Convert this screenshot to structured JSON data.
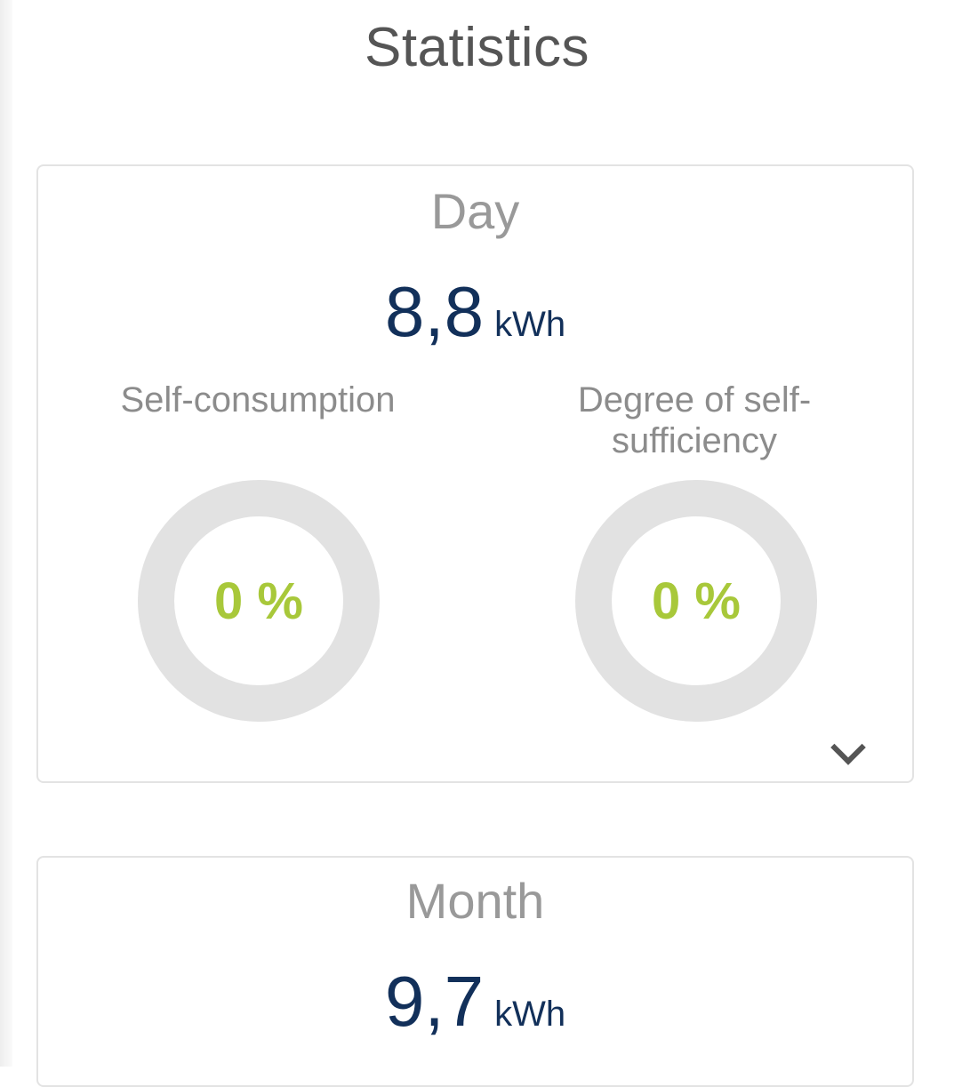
{
  "header": {
    "title": "Statistics"
  },
  "day": {
    "title": "Day",
    "energy_value": "8,8",
    "energy_unit": "kWh",
    "self_consumption": {
      "label": "Self-consumption",
      "value": "0 %",
      "fraction": 0
    },
    "self_sufficiency": {
      "label": "Degree of self-sufficiency",
      "value": "0 %",
      "fraction": 0
    }
  },
  "month": {
    "title": "Month",
    "energy_value": "9,7",
    "energy_unit": "kWh"
  },
  "colors": {
    "energy_value": "#12305a",
    "percent_value": "#a8c83a",
    "donut_track": "#e2e2e2",
    "label_gray": "#8c8c8c"
  },
  "icons": {
    "expand": "chevron-down-icon"
  }
}
